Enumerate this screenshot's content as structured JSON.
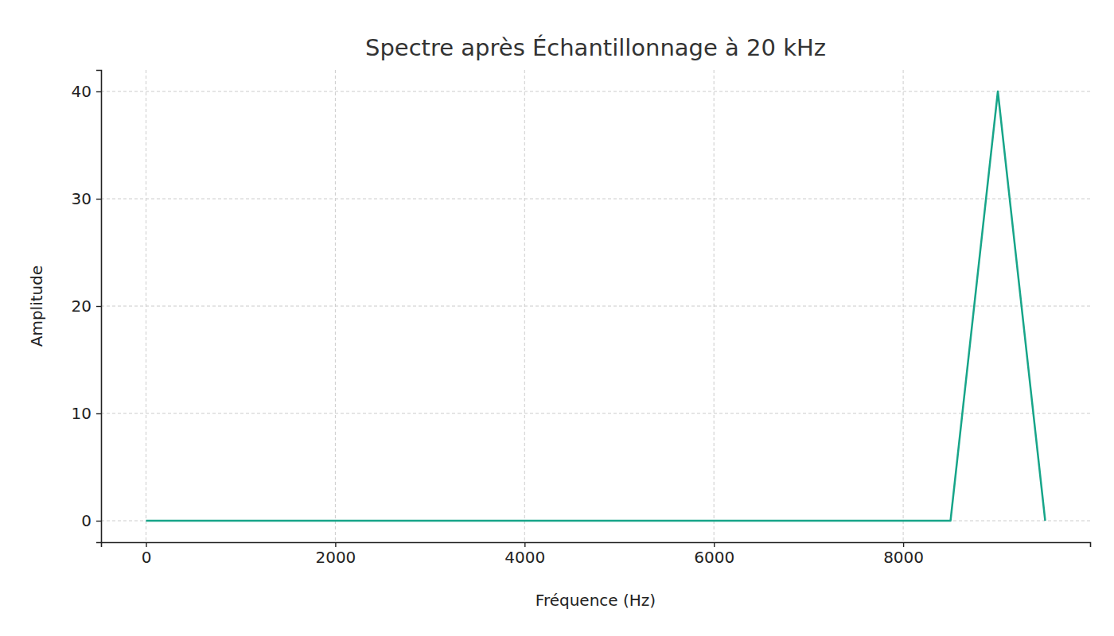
{
  "chart_data": {
    "type": "line",
    "title": "Spectre après Échantillonnage à 20 kHz",
    "x_label": "Fréquence (Hz)",
    "y_label": "Amplitude",
    "x": [
      0,
      8500,
      9000,
      9500
    ],
    "values": [
      0,
      0,
      40,
      0
    ],
    "color": "#17a589",
    "xlim": [
      -475,
      9975
    ],
    "xticks": [
      0,
      2000,
      4000,
      6000,
      8000
    ],
    "ylim": [
      -2,
      42
    ],
    "yticks": [
      0,
      10,
      20,
      30,
      40
    ],
    "grid": true
  }
}
